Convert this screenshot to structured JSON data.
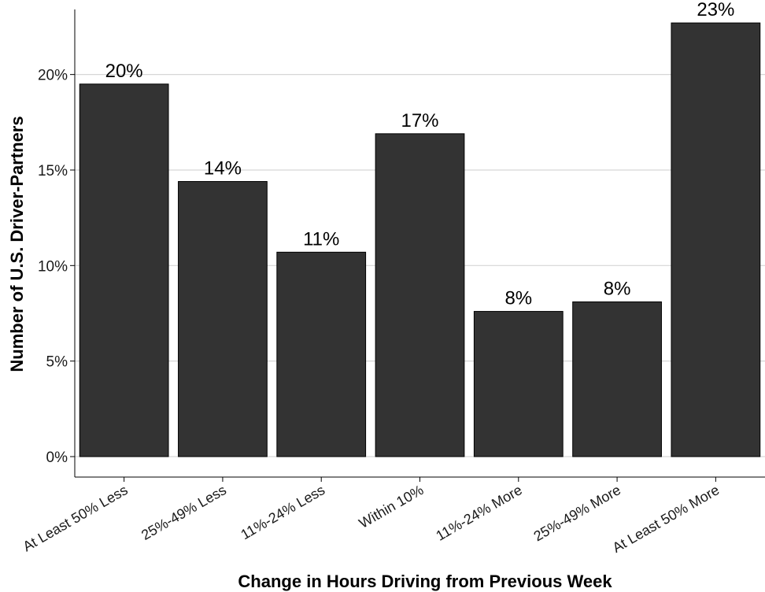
{
  "chart_data": {
    "type": "bar",
    "categories": [
      "At Least 50% Less",
      "25%-49% Less",
      "11%-24% Less",
      "Within 10%",
      "11%-24% More",
      "25%-49% More",
      "At Least 50% More"
    ],
    "values": [
      19.5,
      14.4,
      10.7,
      16.9,
      7.6,
      8.1,
      22.7
    ],
    "data_labels": [
      "20%",
      "14%",
      "11%",
      "17%",
      "8%",
      "8%",
      "23%"
    ],
    "title": "",
    "xlabel": "Change in Hours Driving from Previous Week",
    "ylabel": "Number of U.S. Driver-Partners",
    "ylim": [
      0,
      23.9
    ],
    "yticks": [
      0,
      5,
      10,
      15,
      20
    ],
    "ytick_labels": [
      "0%",
      "5%",
      "10%",
      "15%",
      "20%"
    ],
    "grid": "horizontal-major",
    "legend": "none",
    "bar_color": "#333333"
  }
}
